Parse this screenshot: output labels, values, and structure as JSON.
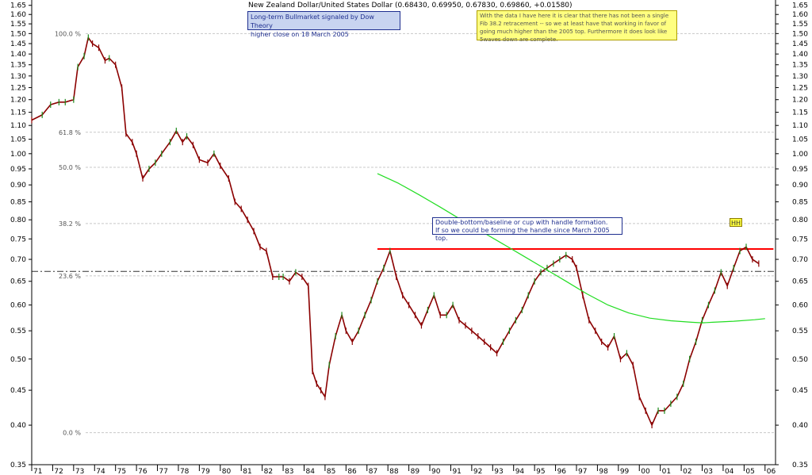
{
  "chart_data": {
    "type": "line",
    "title": "New Zealand Dollar/United States Dollar (0.68430, 0.69950, 0.67830, 0.69860, +0.01580)",
    "xlabel": "",
    "ylabel": "",
    "scale": "log",
    "ylim": [
      0.35,
      1.68
    ],
    "x_ticks": [
      "71",
      "72",
      "73",
      "74",
      "75",
      "76",
      "77",
      "78",
      "79",
      "80",
      "81",
      "82",
      "83",
      "84",
      "85",
      "86",
      "87",
      "88",
      "89",
      "90",
      "91",
      "92",
      "93",
      "94",
      "95",
      "96",
      "97",
      "98",
      "99",
      "00",
      "01",
      "02",
      "03",
      "04",
      "05",
      "06"
    ],
    "y_ticks": [
      "1.65",
      "1.60",
      "1.55",
      "1.50",
      "1.45",
      "1.40",
      "1.35",
      "1.30",
      "1.25",
      "1.20",
      "1.15",
      "1.10",
      "1.05",
      "1.00",
      "0.95",
      "0.90",
      "0.85",
      "0.80",
      "0.75",
      "0.70",
      "0.65",
      "0.60",
      "0.55",
      "0.50",
      "0.45",
      "0.40",
      "0.35"
    ],
    "grid": false,
    "series": [
      {
        "color": "#8b0000",
        "x": [
          1971.0,
          1971.5,
          1971.9,
          1972.3,
          1972.6,
          1973.0,
          1973.2,
          1973.5,
          1973.7,
          1973.9,
          1974.2,
          1974.5,
          1974.7,
          1975.0,
          1975.3,
          1975.5,
          1975.8,
          1976.0,
          1976.3,
          1976.6,
          1976.9,
          1977.2,
          1977.6,
          1977.9,
          1978.2,
          1978.4,
          1978.7,
          1979.0,
          1979.4,
          1979.7,
          1980.0,
          1980.4,
          1980.7,
          1981.0,
          1981.3,
          1981.6,
          1981.9,
          1982.2,
          1982.5,
          1982.8,
          1983.0,
          1983.3,
          1983.6,
          1983.9,
          1984.2,
          1984.4,
          1984.6,
          1984.8,
          1985.0,
          1985.2,
          1985.5,
          1985.8,
          1986.0,
          1986.3,
          1986.6,
          1986.9,
          1987.2,
          1987.5,
          1987.8,
          1988.1,
          1988.4,
          1988.7,
          1989.0,
          1989.3,
          1989.6,
          1989.9,
          1990.2,
          1990.5,
          1990.8,
          1991.1,
          1991.4,
          1991.7,
          1992.0,
          1992.3,
          1992.6,
          1992.9,
          1993.2,
          1993.5,
          1993.8,
          1994.1,
          1994.4,
          1994.7,
          1995.0,
          1995.3,
          1995.6,
          1995.9,
          1996.2,
          1996.5,
          1996.8,
          1997.0,
          1997.3,
          1997.6,
          1997.9,
          1998.2,
          1998.5,
          1998.8,
          1999.1,
          1999.4,
          1999.7,
          2000.0,
          2000.3,
          2000.6,
          2000.9,
          2001.2,
          2001.5,
          2001.8,
          2002.1,
          2002.4,
          2002.7,
          2003.0,
          2003.3,
          2003.6,
          2003.9,
          2004.2,
          2004.5,
          2004.8,
          2005.1,
          2005.4,
          2005.7
        ],
        "values": [
          1.12,
          1.14,
          1.18,
          1.19,
          1.19,
          1.2,
          1.34,
          1.39,
          1.48,
          1.45,
          1.43,
          1.37,
          1.38,
          1.35,
          1.25,
          1.07,
          1.04,
          1.0,
          0.92,
          0.95,
          0.97,
          1.0,
          1.04,
          1.08,
          1.04,
          1.06,
          1.03,
          0.98,
          0.97,
          1.0,
          0.96,
          0.92,
          0.85,
          0.83,
          0.8,
          0.77,
          0.73,
          0.72,
          0.66,
          0.66,
          0.66,
          0.65,
          0.67,
          0.66,
          0.64,
          0.48,
          0.46,
          0.45,
          0.44,
          0.49,
          0.54,
          0.58,
          0.55,
          0.53,
          0.55,
          0.58,
          0.61,
          0.65,
          0.68,
          0.72,
          0.66,
          0.62,
          0.6,
          0.58,
          0.56,
          0.59,
          0.62,
          0.58,
          0.58,
          0.6,
          0.57,
          0.56,
          0.55,
          0.54,
          0.53,
          0.52,
          0.51,
          0.53,
          0.55,
          0.57,
          0.59,
          0.62,
          0.65,
          0.67,
          0.68,
          0.69,
          0.7,
          0.71,
          0.7,
          0.68,
          0.62,
          0.57,
          0.55,
          0.53,
          0.52,
          0.54,
          0.5,
          0.51,
          0.49,
          0.44,
          0.42,
          0.4,
          0.42,
          0.42,
          0.43,
          0.44,
          0.46,
          0.5,
          0.53,
          0.57,
          0.6,
          0.63,
          0.67,
          0.64,
          0.68,
          0.72,
          0.73,
          0.7,
          0.69
        ]
      },
      {
        "color": "#22dd22",
        "x": [
          1987.5,
          1988.5,
          1989.5,
          1990.5,
          1991.5,
          1992.5,
          1993.5,
          1994.5,
          1995.5,
          1996.5,
          1997.5,
          1998.5,
          1999.5,
          2000.5,
          2001.5,
          2002.5,
          2003.0,
          2003.5,
          2004.5,
          2005.5,
          2006.0
        ],
        "values": [
          0.935,
          0.905,
          0.87,
          0.835,
          0.8,
          0.768,
          0.737,
          0.707,
          0.678,
          0.65,
          0.623,
          0.6,
          0.584,
          0.574,
          0.569,
          0.566,
          0.565,
          0.566,
          0.568,
          0.571,
          0.573
        ]
      }
    ],
    "fib_levels": [
      {
        "label": "100.0 %",
        "value": 1.5
      },
      {
        "label": "61.8 %",
        "value": 1.075
      },
      {
        "label": "50.0 %",
        "value": 0.955
      },
      {
        "label": "38.2 %",
        "value": 0.79
      },
      {
        "label": "23.6 %",
        "value": 0.662
      },
      {
        "label": "0.0 %",
        "value": 0.39
      }
    ],
    "resistance_value": 0.725,
    "dashdot_value": 0.672
  },
  "notes": {
    "blue_line1": "Long-term Bullmarket signaled by Dow  Theory",
    "blue_line2": "higher close on 18 March  2005",
    "yellow_text": "With the data I have here it is clear that there has not been a single Fib 38.2 retracement -- so we at least have that working in favor of going much higher than the 2005 top.  Furthermore it does look like 5waves down are complete.",
    "white_line1": "Double-bottom/baseline or cup with handle formation.",
    "white_line2": "If so we could be forming the handle since March 2005 top.",
    "hh": "HH"
  }
}
